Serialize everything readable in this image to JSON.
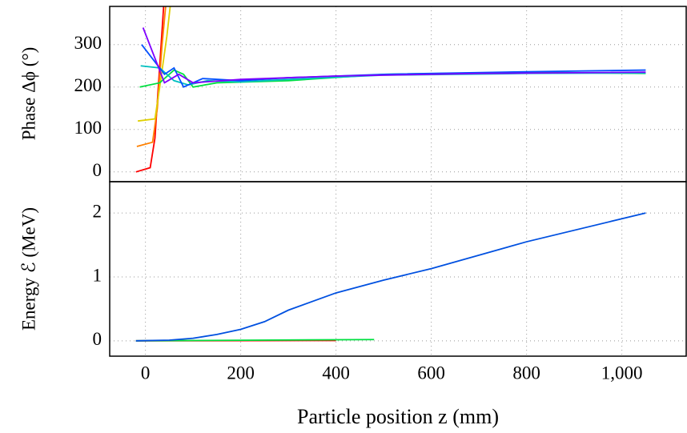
{
  "chart_data": [
    {
      "type": "line",
      "ylabel": "Phase Δϕ (°)",
      "ylim": [
        -23,
        390
      ],
      "yticks": [
        0,
        100,
        200,
        300
      ],
      "grid": true,
      "series": [
        {
          "color": "#ff0000",
          "x": [
            -20,
            10,
            20,
            30,
            40
          ],
          "values": [
            0,
            10,
            80,
            250,
            420
          ]
        },
        {
          "color": "#ff8000",
          "x": [
            -18,
            15,
            25,
            35,
            45
          ],
          "values": [
            60,
            70,
            150,
            300,
            420
          ]
        },
        {
          "color": "#e0d000",
          "x": [
            -16,
            20,
            30,
            45,
            55
          ],
          "values": [
            120,
            125,
            200,
            320,
            420
          ]
        },
        {
          "color": "#00e040",
          "x": [
            -12,
            30,
            60,
            80,
            100,
            150,
            300,
            500,
            800,
            1050
          ],
          "values": [
            200,
            210,
            240,
            230,
            200,
            210,
            215,
            230,
            235,
            232
          ]
        },
        {
          "color": "#00c0c0",
          "x": [
            -10,
            30,
            60,
            90,
            130,
            200,
            300,
            500,
            800,
            1050
          ],
          "values": [
            250,
            245,
            215,
            205,
            215,
            212,
            218,
            228,
            232,
            233
          ]
        },
        {
          "color": "#0050ff",
          "x": [
            -8,
            40,
            60,
            80,
            120,
            200,
            300,
            500,
            800,
            1050
          ],
          "values": [
            300,
            230,
            245,
            200,
            220,
            215,
            222,
            230,
            236,
            240
          ]
        },
        {
          "color": "#8000ff",
          "x": [
            -5,
            40,
            70,
            100,
            200,
            400,
            700,
            1050
          ],
          "values": [
            340,
            210,
            230,
            210,
            218,
            226,
            232,
            235
          ]
        }
      ]
    },
    {
      "type": "line",
      "ylabel": "Energy ℰ (MeV)",
      "xlabel": "Particle position z (mm)",
      "xlim": [
        -75,
        1135
      ],
      "xticks": [
        0,
        200,
        400,
        600,
        800,
        {
          "value": 1000,
          "label": "1,000"
        }
      ],
      "ylim": [
        -0.24,
        2.49
      ],
      "yticks": [
        0,
        1,
        2
      ],
      "grid": true,
      "series": [
        {
          "color": "#ff0000",
          "x": [
            -20,
            400
          ],
          "values": [
            0,
            0.005
          ]
        },
        {
          "color": "#00e040",
          "x": [
            -20,
            480
          ],
          "values": [
            0,
            0.02
          ]
        },
        {
          "color": "#0050e0",
          "x": [
            -20,
            50,
            100,
            150,
            200,
            250,
            300,
            400,
            500,
            600,
            800,
            1050
          ],
          "values": [
            0,
            0.01,
            0.04,
            0.1,
            0.18,
            0.3,
            0.48,
            0.75,
            0.95,
            1.13,
            1.55,
            2.0
          ]
        }
      ]
    }
  ]
}
